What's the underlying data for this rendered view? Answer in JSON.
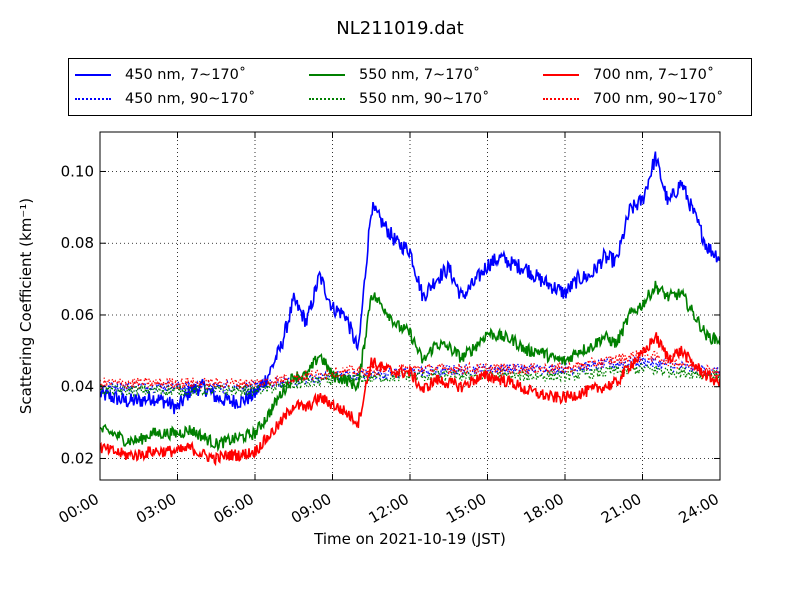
{
  "chart_data": {
    "type": "line",
    "title": "NL211019.dat",
    "xlabel": "Time on 2021-10-19 (JST)",
    "ylabel": "Scattering Coefficient (km⁻¹)",
    "xlim": [
      "00:00",
      "24:00"
    ],
    "ylim": [
      0.014,
      0.111
    ],
    "x_ticks": [
      "00:00",
      "03:00",
      "06:00",
      "09:00",
      "12:00",
      "15:00",
      "18:00",
      "21:00",
      "24:00"
    ],
    "y_ticks": [
      "0.02",
      "0.04",
      "0.06",
      "0.08",
      "0.10"
    ],
    "grid": true,
    "legend_position": "top",
    "series": [
      {
        "name": "450 nm, 7∼170˚",
        "color": "#0000ff",
        "style": "solid",
        "x": [
          "00:00",
          "00:30",
          "01:00",
          "01:30",
          "02:00",
          "02:30",
          "03:00",
          "03:30",
          "04:00",
          "04:30",
          "05:00",
          "05:30",
          "06:00",
          "06:30",
          "07:00",
          "07:30",
          "08:00",
          "08:30",
          "09:00",
          "09:30",
          "10:00",
          "10:30",
          "11:00",
          "11:30",
          "12:00",
          "12:30",
          "13:00",
          "13:30",
          "14:00",
          "14:30",
          "15:00",
          "15:30",
          "16:00",
          "16:30",
          "17:00",
          "17:30",
          "18:00",
          "18:30",
          "19:00",
          "19:30",
          "20:00",
          "20:30",
          "21:00",
          "21:30",
          "22:00",
          "22:30",
          "23:00",
          "23:30",
          "24:00"
        ],
        "values": [
          0.038,
          0.037,
          0.036,
          0.036,
          0.037,
          0.036,
          0.034,
          0.039,
          0.04,
          0.037,
          0.036,
          0.036,
          0.038,
          0.043,
          0.051,
          0.064,
          0.058,
          0.071,
          0.062,
          0.06,
          0.05,
          0.09,
          0.085,
          0.08,
          0.078,
          0.065,
          0.07,
          0.073,
          0.065,
          0.069,
          0.074,
          0.076,
          0.074,
          0.073,
          0.07,
          0.068,
          0.066,
          0.07,
          0.071,
          0.076,
          0.075,
          0.089,
          0.092,
          0.104,
          0.091,
          0.097,
          0.088,
          0.079,
          0.076
        ]
      },
      {
        "name": "450 nm, 90∼170˚",
        "color": "#0000ff",
        "style": "dotted",
        "x": [
          "00:00",
          "03:00",
          "06:00",
          "09:00",
          "12:00",
          "15:00",
          "18:00",
          "21:00",
          "24:00"
        ],
        "values": [
          0.04,
          0.04,
          0.04,
          0.043,
          0.044,
          0.045,
          0.045,
          0.047,
          0.044
        ]
      },
      {
        "name": "550 nm, 7∼170˚",
        "color": "#008000",
        "style": "solid",
        "x": [
          "00:00",
          "00:30",
          "01:00",
          "01:30",
          "02:00",
          "02:30",
          "03:00",
          "03:30",
          "04:00",
          "04:30",
          "05:00",
          "05:30",
          "06:00",
          "06:30",
          "07:00",
          "07:30",
          "08:00",
          "08:30",
          "09:00",
          "09:30",
          "10:00",
          "10:30",
          "11:00",
          "11:30",
          "12:00",
          "12:30",
          "13:00",
          "13:30",
          "14:00",
          "14:30",
          "15:00",
          "15:30",
          "16:00",
          "16:30",
          "17:00",
          "17:30",
          "18:00",
          "18:30",
          "19:00",
          "19:30",
          "20:00",
          "20:30",
          "21:00",
          "21:30",
          "22:00",
          "22:30",
          "23:00",
          "23:30",
          "24:00"
        ],
        "values": [
          0.028,
          0.027,
          0.025,
          0.025,
          0.027,
          0.027,
          0.027,
          0.028,
          0.026,
          0.024,
          0.025,
          0.026,
          0.027,
          0.032,
          0.038,
          0.043,
          0.043,
          0.049,
          0.043,
          0.042,
          0.04,
          0.066,
          0.062,
          0.057,
          0.055,
          0.047,
          0.052,
          0.051,
          0.048,
          0.051,
          0.055,
          0.054,
          0.053,
          0.05,
          0.05,
          0.048,
          0.047,
          0.05,
          0.051,
          0.054,
          0.052,
          0.06,
          0.063,
          0.068,
          0.065,
          0.066,
          0.06,
          0.054,
          0.053
        ]
      },
      {
        "name": "550 nm, 90∼170˚",
        "color": "#008000",
        "style": "dotted",
        "x": [
          "00:00",
          "03:00",
          "06:00",
          "09:00",
          "12:00",
          "15:00",
          "18:00",
          "21:00",
          "24:00"
        ],
        "values": [
          0.039,
          0.039,
          0.039,
          0.042,
          0.043,
          0.043,
          0.043,
          0.045,
          0.043
        ]
      },
      {
        "name": "700 nm, 7∼170˚",
        "color": "#ff0000",
        "style": "solid",
        "x": [
          "00:00",
          "00:30",
          "01:00",
          "01:30",
          "02:00",
          "02:30",
          "03:00",
          "03:30",
          "04:00",
          "04:30",
          "05:00",
          "05:30",
          "06:00",
          "06:30",
          "07:00",
          "07:30",
          "08:00",
          "08:30",
          "09:00",
          "09:30",
          "10:00",
          "10:30",
          "11:00",
          "11:30",
          "12:00",
          "12:30",
          "13:00",
          "13:30",
          "14:00",
          "14:30",
          "15:00",
          "15:30",
          "16:00",
          "16:30",
          "17:00",
          "17:30",
          "18:00",
          "18:30",
          "19:00",
          "19:30",
          "20:00",
          "20:30",
          "21:00",
          "21:30",
          "22:00",
          "22:30",
          "23:00",
          "23:30",
          "24:00"
        ],
        "values": [
          0.023,
          0.022,
          0.021,
          0.021,
          0.022,
          0.022,
          0.022,
          0.023,
          0.021,
          0.02,
          0.021,
          0.021,
          0.022,
          0.026,
          0.03,
          0.035,
          0.034,
          0.037,
          0.035,
          0.033,
          0.03,
          0.047,
          0.045,
          0.044,
          0.044,
          0.039,
          0.042,
          0.041,
          0.04,
          0.042,
          0.043,
          0.042,
          0.041,
          0.039,
          0.038,
          0.037,
          0.037,
          0.038,
          0.039,
          0.04,
          0.041,
          0.046,
          0.049,
          0.054,
          0.048,
          0.05,
          0.046,
          0.043,
          0.041
        ]
      },
      {
        "name": "700 nm, 90∼170˚",
        "color": "#ff0000",
        "style": "dotted",
        "x": [
          "00:00",
          "03:00",
          "06:00",
          "09:00",
          "12:00",
          "15:00",
          "18:00",
          "21:00",
          "24:00"
        ],
        "values": [
          0.041,
          0.041,
          0.041,
          0.044,
          0.045,
          0.045,
          0.045,
          0.049,
          0.044
        ]
      }
    ]
  }
}
